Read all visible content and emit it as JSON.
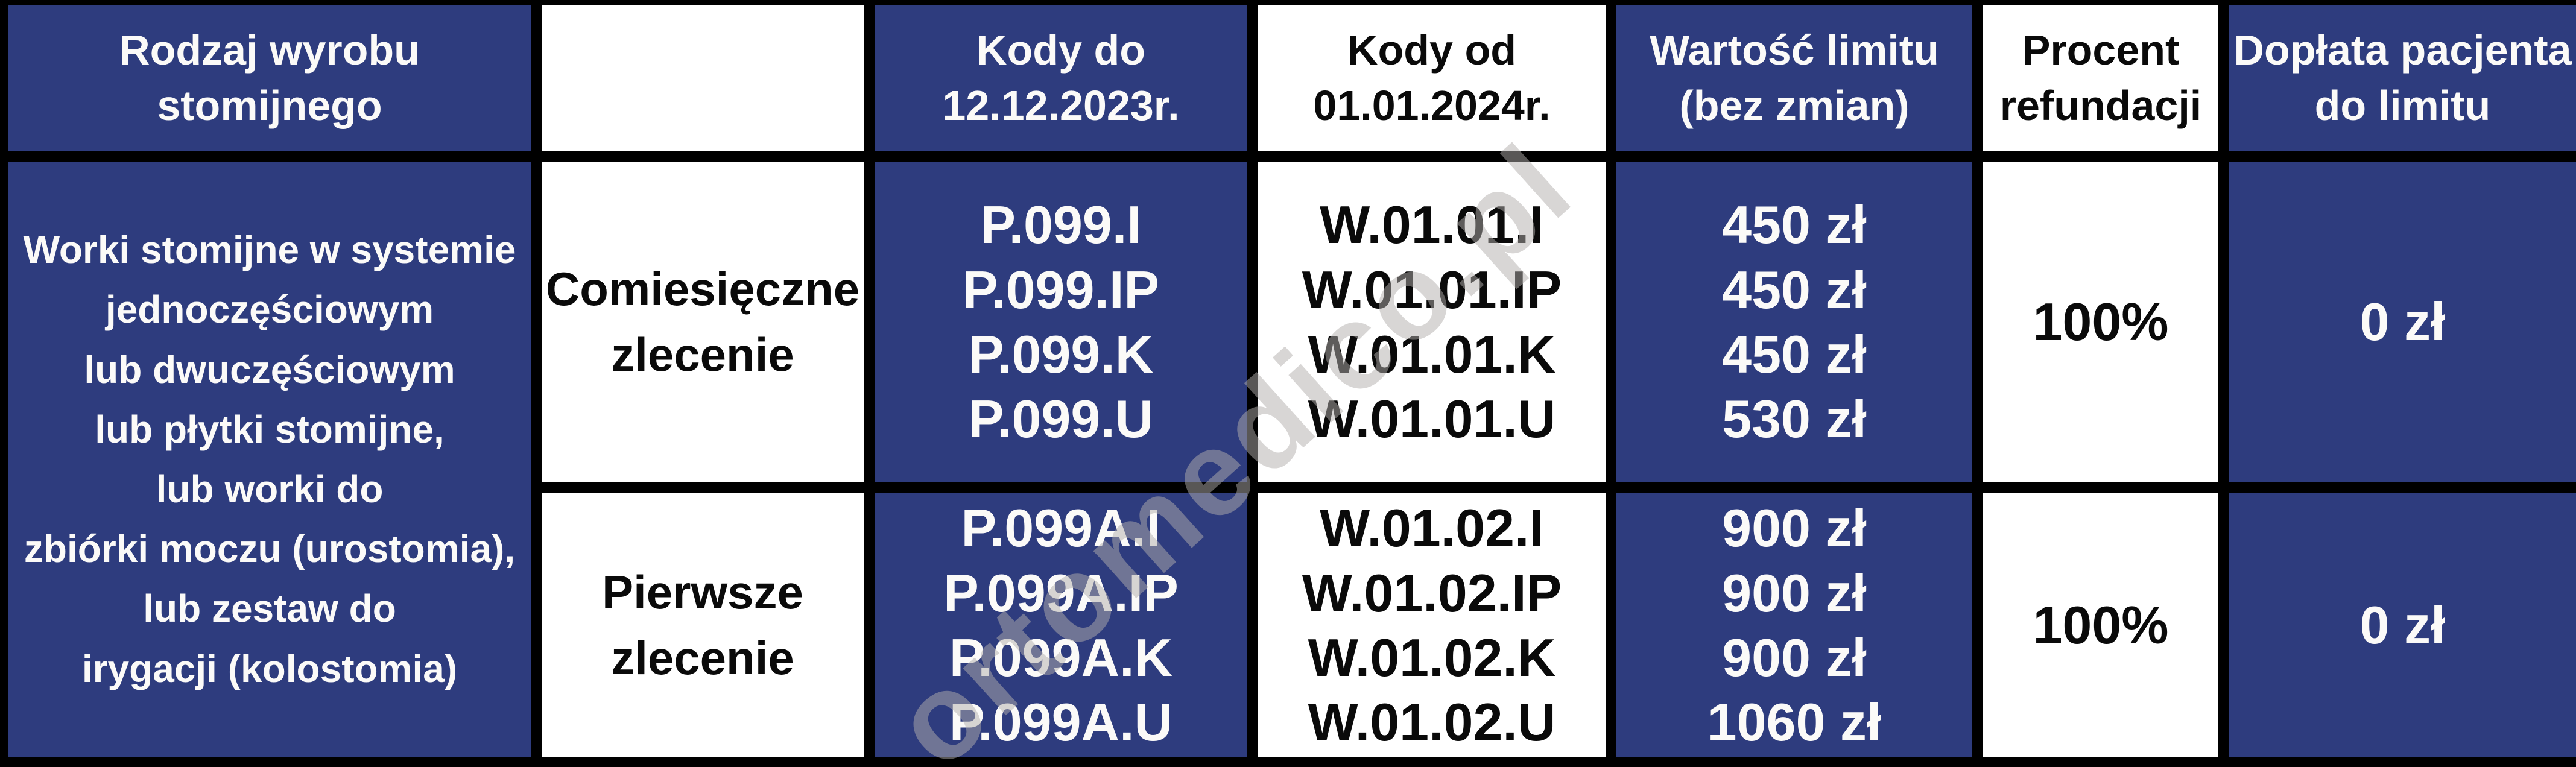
{
  "colors": {
    "navy_cell": "#2e3c7e",
    "white_cell": "#ffffff",
    "grid_border": "#000000",
    "text_on_navy": "#fbfaf8",
    "text_on_white": "#0a0a0a",
    "watermark_gray": "#b2aeac"
  },
  "watermark": {
    "text": "ortomedico.pl"
  },
  "table": {
    "headers": [
      {
        "label": "Rodzaj wyrobu\nstomijnego"
      },
      {
        "label": ""
      },
      {
        "label": "Kody do\n12.12.2023r."
      },
      {
        "label": "Kody od\n01.01.2024r."
      },
      {
        "label": "Wartość limitu\n(bez zmian)"
      },
      {
        "label": "Procent\nrefundacji"
      },
      {
        "label": "Dopłata pacjenta\ndo limitu"
      }
    ],
    "category": "Worki stomijne w systemie\njednoczęściowym\nlub dwuczęściowym\nlub płytki stomijne,\nlub worki do\nzbiórki moczu (urostomia),\nlub zestaw do\nirygacji (kolostomia)",
    "rows": [
      {
        "order_type": "Comiesięczne\nzlecenie",
        "codes_until": "P.099.I\nP.099.IP\nP.099.K\nP.099.U",
        "codes_from": "W.01.01.I\nW.01.01.IP\nW.01.01.K\nW.01.01.U",
        "limit_value": "450 zł\n450 zł\n450 zł\n530 zł",
        "refund_percent": "100%",
        "patient_copay": "0 zł"
      },
      {
        "order_type": "Pierwsze\nzlecenie",
        "codes_until": "P.099A.I\nP.099A.IP\nP.099A.K\nP.099A.U",
        "codes_from": "W.01.02.I\nW.01.02.IP\nW.01.02.K\nW.01.02.U",
        "limit_value": "900 zł\n900 zł\n900 zł\n1060 zł",
        "refund_percent": "100%",
        "patient_copay": "0 zł"
      }
    ]
  }
}
